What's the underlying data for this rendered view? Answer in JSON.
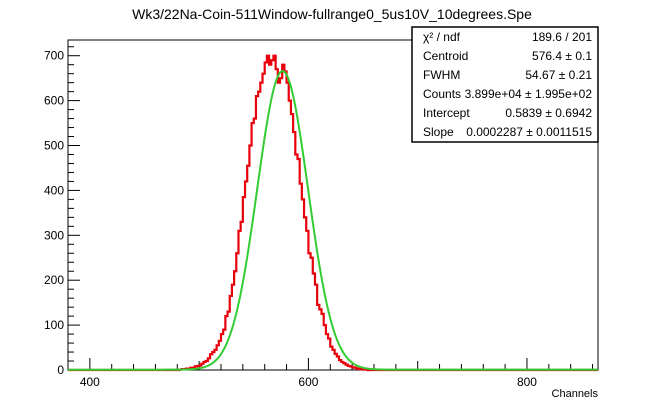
{
  "chart_data": {
    "type": "line",
    "title": "Wk3/22Na-Coin-511Window-fullrange0_5us10V_10degrees.Spe",
    "xlabel": "Channels",
    "ylabel": "",
    "xlim": [
      380,
      865
    ],
    "ylim": [
      0,
      735
    ],
    "x_ticks": [
      400,
      600,
      800
    ],
    "y_ticks": [
      0,
      100,
      200,
      300,
      400,
      500,
      600,
      700
    ],
    "grid": false,
    "legend": "none",
    "series": [
      {
        "kind": "histogram",
        "color": "#e8000b",
        "bin_width": 2,
        "x": [
          480,
          482,
          484,
          486,
          488,
          490,
          492,
          494,
          496,
          498,
          500,
          502,
          504,
          506,
          508,
          510,
          512,
          514,
          516,
          518,
          520,
          522,
          524,
          526,
          528,
          530,
          532,
          534,
          536,
          538,
          540,
          542,
          544,
          546,
          548,
          550,
          552,
          554,
          556,
          558,
          560,
          562,
          564,
          566,
          568,
          570,
          572,
          574,
          576,
          578,
          580,
          582,
          584,
          586,
          588,
          590,
          592,
          594,
          596,
          598,
          600,
          602,
          604,
          606,
          608,
          610,
          612,
          614,
          616,
          618,
          620,
          622,
          624,
          626,
          628,
          630,
          632,
          634,
          636,
          638,
          640,
          642,
          644,
          646,
          648,
          650,
          652,
          654,
          656,
          658,
          660,
          662,
          664,
          666,
          668,
          670
        ],
        "values": [
          0,
          1,
          2,
          2,
          3,
          3,
          5,
          5,
          8,
          9,
          10,
          14,
          18,
          20,
          26,
          35,
          40,
          45,
          55,
          65,
          80,
          90,
          120,
          130,
          165,
          190,
          220,
          260,
          310,
          330,
          385,
          420,
          455,
          500,
          550,
          560,
          610,
          620,
          640,
          660,
          685,
          700,
          680,
          690,
          700,
          670,
          640,
          650,
          680,
          665,
          640,
          600,
          570,
          530,
          480,
          470,
          415,
          380,
          340,
          310,
          260,
          250,
          215,
          190,
          145,
          135,
          125,
          100,
          80,
          70,
          52,
          45,
          36,
          30,
          22,
          18,
          15,
          12,
          9,
          8,
          6,
          5,
          3,
          2,
          2,
          1,
          1,
          0,
          0,
          0,
          0,
          0,
          0,
          0,
          0,
          0
        ]
      },
      {
        "kind": "fit",
        "color": "#33cc33",
        "model": "gaussian + linear",
        "amplitude": 665,
        "mean": 576.4,
        "fwhm": 54.67,
        "intercept": 0.5839,
        "slope": 0.0002287
      }
    ]
  },
  "stats_box": {
    "rows": [
      {
        "label": "χ² / ndf",
        "value": "189.6 / 201"
      },
      {
        "label": "Centroid",
        "value": "576.4 ± 0.1"
      },
      {
        "label": "FWHM",
        "value": "54.67 ± 0.21"
      },
      {
        "label": "Counts",
        "value": "3.899e+04 ± 1.995e+02"
      },
      {
        "label": "Intercept",
        "value": "0.5839 ± 0.6942"
      },
      {
        "label": "Slope",
        "value": "0.0002287 ± 0.0011515"
      }
    ]
  }
}
